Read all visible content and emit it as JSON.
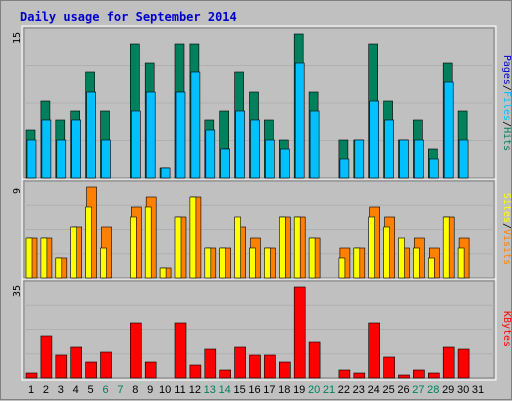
{
  "title": "Daily usage for September 2014",
  "chart_data": [
    {
      "type": "bar",
      "panel": "hits",
      "categories": [
        "1",
        "2",
        "3",
        "4",
        "5",
        "6",
        "7",
        "8",
        "9",
        "10",
        "11",
        "12",
        "13",
        "14",
        "15",
        "16",
        "17",
        "18",
        "19",
        "20",
        "21",
        "22",
        "23",
        "24",
        "25",
        "26",
        "27",
        "28",
        "29",
        "30",
        "31"
      ],
      "weekend_days": [
        "6",
        "7",
        "13",
        "14",
        "20",
        "21",
        "27",
        "28"
      ],
      "max_label": "15",
      "ylim": [
        0,
        15
      ],
      "series": [
        {
          "name": "Hits",
          "color": "#00805c",
          "values": [
            5,
            8,
            6,
            7,
            11,
            7,
            0,
            14,
            12,
            1,
            14,
            14,
            6,
            7,
            11,
            9,
            6,
            4,
            15,
            9,
            0,
            4,
            4,
            14,
            8,
            4,
            6,
            3,
            12,
            7,
            0
          ]
        },
        {
          "name": "Pages",
          "color": "#0000cc",
          "values": [
            2,
            4,
            3,
            4,
            6,
            3,
            0,
            5,
            6,
            1,
            9,
            10,
            3,
            3,
            5,
            4,
            2,
            2,
            6,
            4,
            0,
            1,
            2,
            7,
            4,
            3,
            2,
            1,
            7,
            2,
            0
          ]
        },
        {
          "name": "Files",
          "color": "#00c0ff",
          "values": [
            4,
            6,
            4,
            6,
            9,
            4,
            0,
            7,
            9,
            1,
            9,
            11,
            5,
            3,
            7,
            6,
            4,
            3,
            12,
            7,
            0,
            2,
            4,
            8,
            6,
            4,
            4,
            2,
            10,
            4,
            0
          ]
        }
      ],
      "axis_labels": [
        "Pages",
        "/",
        "Files",
        "/",
        "Hits"
      ]
    },
    {
      "type": "bar",
      "panel": "visits",
      "categories": [
        "1",
        "2",
        "3",
        "4",
        "5",
        "6",
        "7",
        "8",
        "9",
        "10",
        "11",
        "12",
        "13",
        "14",
        "15",
        "16",
        "17",
        "18",
        "19",
        "20",
        "21",
        "22",
        "23",
        "24",
        "25",
        "26",
        "27",
        "28",
        "29",
        "30",
        "31"
      ],
      "max_label": "9",
      "ylim": [
        0,
        9
      ],
      "series": [
        {
          "name": "Visits",
          "color": "#ff8000",
          "values": [
            4,
            4,
            2,
            5,
            9,
            5,
            0,
            7,
            8,
            1,
            6,
            8,
            3,
            3,
            5,
            4,
            3,
            6,
            6,
            4,
            0,
            3,
            3,
            7,
            6,
            3,
            4,
            3,
            6,
            4,
            0
          ]
        },
        {
          "name": "Sites",
          "color": "#ffff00",
          "values": [
            4,
            4,
            2,
            5,
            7,
            3,
            0,
            6,
            7,
            1,
            6,
            8,
            3,
            3,
            6,
            3,
            3,
            6,
            6,
            4,
            0,
            2,
            3,
            6,
            5,
            4,
            3,
            2,
            6,
            3,
            0
          ]
        }
      ],
      "axis_labels": [
        "Sites",
        "/",
        "Visits"
      ]
    },
    {
      "type": "bar",
      "panel": "kbytes",
      "categories": [
        "1",
        "2",
        "3",
        "4",
        "5",
        "6",
        "7",
        "8",
        "9",
        "10",
        "11",
        "12",
        "13",
        "14",
        "15",
        "16",
        "17",
        "18",
        "19",
        "20",
        "21",
        "22",
        "23",
        "24",
        "25",
        "26",
        "27",
        "28",
        "29",
        "30",
        "31"
      ],
      "max_label": "35",
      "ylim": [
        0,
        35
      ],
      "series": [
        {
          "name": "KBytes",
          "color": "#ff0000",
          "values": [
            2,
            16,
            9,
            12,
            6,
            10,
            0,
            21,
            6,
            0,
            21,
            5,
            11,
            3,
            12,
            9,
            9,
            6,
            35,
            14,
            0,
            3,
            2,
            21,
            8,
            1,
            3,
            2,
            12,
            11,
            0
          ]
        }
      ],
      "axis_labels": [
        "KBytes"
      ]
    }
  ]
}
